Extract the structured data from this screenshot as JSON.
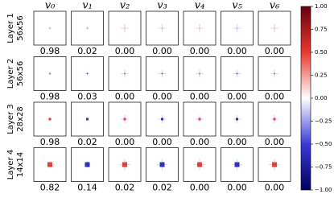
{
  "columns": [
    "v₀",
    "v₁",
    "v₂",
    "v₃",
    "v₄",
    "v₅",
    "v₆"
  ],
  "rows": [
    {
      "label": "Layer 1",
      "size": "56x56",
      "values": [
        "0.98",
        "0.02",
        "0.00",
        "0.00",
        "0.00",
        "0.00",
        "0.00"
      ]
    },
    {
      "label": "Layer 2",
      "size": "56x56",
      "values": [
        "0.98",
        "0.03",
        "0.00",
        "0.00",
        "0.00",
        "0.00",
        "0.00"
      ]
    },
    {
      "label": "Layer 3",
      "size": "28x28",
      "values": [
        "0.98",
        "0.02",
        "0.00",
        "0.00",
        "0.00",
        "0.00",
        "0.00"
      ]
    },
    {
      "label": "Layer 4",
      "size": "14x14",
      "values": [
        "0.82",
        "0.14",
        "0.02",
        "0.02",
        "0.00",
        "0.00",
        "0.00"
      ]
    }
  ],
  "colorbar": {
    "lim": [
      -1,
      1
    ],
    "ticks": [
      {
        "value": 1,
        "label": "1.00"
      },
      {
        "value": 0.75,
        "label": "0.75"
      },
      {
        "value": 0.5,
        "label": "0.50"
      },
      {
        "value": 0.25,
        "label": "0.25"
      },
      {
        "value": 0,
        "label": "0.00"
      },
      {
        "value": -0.25,
        "label": "−0.25"
      },
      {
        "value": -0.5,
        "label": "−0.50"
      },
      {
        "value": -0.75,
        "label": "−0.75"
      },
      {
        "value": -1,
        "label": "−1.00"
      }
    ]
  }
}
